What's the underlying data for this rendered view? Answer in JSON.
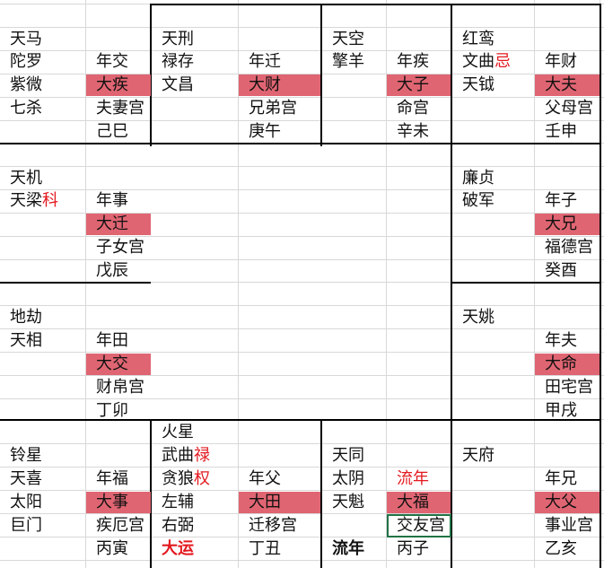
{
  "colors": {
    "highlight": "#e06572",
    "red_text": "#e3191f",
    "grid": "#d8d8d8",
    "selection": "#217346"
  },
  "palaces": {
    "si": {
      "stars": [
        "天马",
        "陀罗",
        "紫微",
        "七杀"
      ],
      "year": "年交",
      "major": "大疾",
      "palace": "夫妻宫",
      "stem_branch": "己巳"
    },
    "wu": {
      "stars": [
        "天刑",
        "禄存",
        "文昌"
      ],
      "year": "年迁",
      "major": "大财",
      "palace": "兄弟宫",
      "stem_branch": "庚午"
    },
    "wei": {
      "stars": [
        "天空",
        "擎羊"
      ],
      "year": "年疾",
      "major": "大子",
      "palace": "命宫",
      "stem_branch": "辛未"
    },
    "shen": {
      "stars": [
        "红鸾",
        "文曲",
        "天钺"
      ],
      "star_marker": "忌",
      "year": "年财",
      "major": "大夫",
      "palace": "父母宫",
      "stem_branch": "壬申"
    },
    "chen": {
      "stars": [
        "天机",
        "天梁"
      ],
      "star_marker": "科",
      "year": "年事",
      "major": "大迁",
      "palace": "子女宫",
      "stem_branch": "戊辰"
    },
    "you": {
      "stars": [
        "廉贞",
        "破军"
      ],
      "year": "年子",
      "major": "大兄",
      "palace": "福德宫",
      "stem_branch": "癸酉"
    },
    "mao": {
      "stars": [
        "地劫",
        "天相"
      ],
      "year": "年田",
      "major": "大交",
      "palace": "财帛宫",
      "stem_branch": "丁卯"
    },
    "xu": {
      "stars": [
        "天姚"
      ],
      "year": "年夫",
      "major": "大命",
      "palace": "田宅宫",
      "stem_branch": "甲戌"
    },
    "yin": {
      "stars": [
        "铃星",
        "天喜",
        "太阳",
        "巨门"
      ],
      "year": "年福",
      "major": "大事",
      "palace": "疾厄宫",
      "stem_branch": "丙寅",
      "marker": "大运"
    },
    "chou": {
      "stars": [
        "火星",
        "武曲",
        "贪狼",
        "左辅",
        "右弼"
      ],
      "star_markers": [
        "禄",
        "权"
      ],
      "year": "年父",
      "major": "大田",
      "palace": "迁移宫",
      "stem_branch": "丁丑"
    },
    "zi": {
      "stars": [
        "天同",
        "太阴",
        "天魁"
      ],
      "year_marker": "流年",
      "major": "大福",
      "palace": "交友宫",
      "stem_branch": "丙子",
      "marker": "流年"
    },
    "hai": {
      "stars": [
        "天府"
      ],
      "year": "年兄",
      "major": "大父",
      "palace": "事业宫",
      "stem_branch": "乙亥"
    }
  }
}
